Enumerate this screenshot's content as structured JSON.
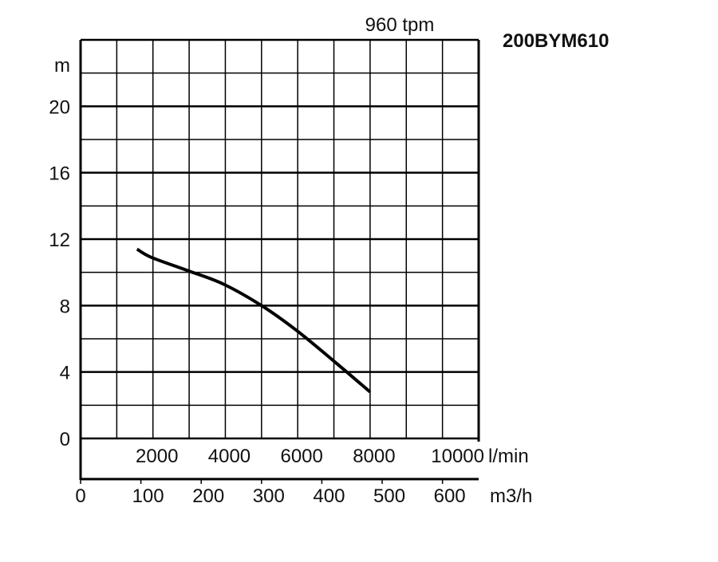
{
  "chart_data": {
    "type": "line",
    "title": "200BYM610",
    "subtitle": "960 tpm",
    "ylabel": "m",
    "ylim": [
      0,
      24
    ],
    "yticks": [
      0,
      4,
      8,
      12,
      16,
      20
    ],
    "xlabel": "l/min",
    "xlim": [
      0,
      11000
    ],
    "xticks": [
      2000,
      4000,
      6000,
      8000,
      10000
    ],
    "x2label": "m3/h",
    "x2ticks": [
      0,
      100,
      200,
      300,
      400,
      500,
      600
    ],
    "grid": true,
    "series": [
      {
        "x": [
          1560,
          1960,
          2970,
          3940,
          5000,
          5970,
          7030,
          8000
        ],
        "y": [
          11.4,
          10.9,
          10.1,
          9.3,
          8.0,
          6.5,
          4.6,
          2.8
        ]
      }
    ],
    "colors": {
      "line": "#000000",
      "grid": "#000000"
    }
  }
}
